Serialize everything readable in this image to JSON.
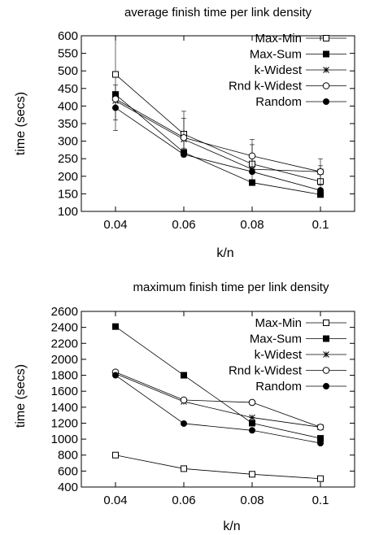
{
  "chart_data": [
    {
      "type": "line",
      "title": "average finish time per link density",
      "xlabel": "k/n",
      "ylabel": "time (secs)",
      "x": [
        0.04,
        0.06,
        0.08,
        0.1
      ],
      "x_ticks": [
        "0.04",
        "0.06",
        "0.08",
        "0.1"
      ],
      "xlim": [
        0.03,
        0.11
      ],
      "ylim": [
        100,
        600
      ],
      "y_ticks": [
        100,
        150,
        200,
        250,
        300,
        350,
        400,
        450,
        500,
        550,
        600
      ],
      "legend_position": "top-right",
      "grid": false,
      "series": [
        {
          "name": "Max-Min",
          "marker": "open-square",
          "values": [
            490,
            320,
            235,
            185
          ],
          "err": [
            [
              330,
              600
            ],
            [
              280,
              385
            ],
            [
              190,
              290
            ],
            [
              150,
              230
            ]
          ]
        },
        {
          "name": "Max-Sum",
          "marker": "filled-square",
          "values": [
            433,
            268,
            182,
            148
          ],
          "err": null
        },
        {
          "name": "k-Widest",
          "marker": "star",
          "values": [
            415,
            305,
            220,
            213
          ],
          "err": null
        },
        {
          "name": "Rnd k-Widest",
          "marker": "open-circle",
          "values": [
            420,
            310,
            258,
            213
          ],
          "err": [
            [
              360,
              460
            ],
            [
              255,
              365
            ],
            [
              215,
              305
            ],
            [
              175,
              250
            ]
          ]
        },
        {
          "name": "Random",
          "marker": "filled-circle",
          "values": [
            395,
            262,
            213,
            160
          ],
          "err": null
        }
      ]
    },
    {
      "type": "line",
      "title": "maximum finish time per link density",
      "xlabel": "k/n",
      "ylabel": "time (secs)",
      "x": [
        0.04,
        0.06,
        0.08,
        0.1
      ],
      "x_ticks": [
        "0.04",
        "0.06",
        "0.08",
        "0.1"
      ],
      "xlim": [
        0.03,
        0.11
      ],
      "ylim": [
        400,
        2600
      ],
      "y_ticks": [
        400,
        600,
        800,
        1000,
        1200,
        1400,
        1600,
        1800,
        2000,
        2200,
        2400,
        2600
      ],
      "legend_position": "top-right",
      "grid": false,
      "series": [
        {
          "name": "Max-Min",
          "marker": "open-square",
          "values": [
            800,
            630,
            560,
            505
          ]
        },
        {
          "name": "Max-Sum",
          "marker": "filled-square",
          "values": [
            2410,
            1800,
            1200,
            1010
          ]
        },
        {
          "name": "k-Widest",
          "marker": "star",
          "values": [
            1820,
            1470,
            1270,
            1150
          ]
        },
        {
          "name": "Rnd k-Widest",
          "marker": "open-circle",
          "values": [
            1840,
            1490,
            1460,
            1150
          ]
        },
        {
          "name": "Random",
          "marker": "filled-circle",
          "values": [
            1800,
            1195,
            1110,
            950
          ]
        }
      ]
    }
  ]
}
